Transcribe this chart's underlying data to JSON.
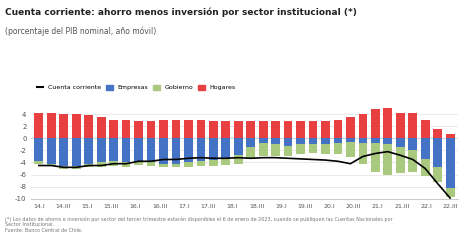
{
  "title": "Cuenta corriente: ahorro menos inversión por sector institucional (*)",
  "subtitle": "(porcentaje del PIB nominal, año móvil)",
  "legend_labels": [
    "Cuenta corriente",
    "Empresas",
    "Gobierno",
    "Hogares"
  ],
  "legend_colors": [
    "#000000",
    "#4472c4",
    "#a9c97e",
    "#e84040"
  ],
  "x_labels": [
    "14.I",
    "14.III",
    "15.I",
    "15.III",
    "16.I",
    "16.III",
    "17.I",
    "17.III",
    "18.I",
    "18.III",
    "19.I",
    "19.III",
    "20.I",
    "20.III",
    "21.I",
    "21.III",
    "22.I",
    "22.III"
  ],
  "empresas": [
    -3.8,
    -4.2,
    -4.5,
    -4.6,
    -4.2,
    -4.0,
    -3.8,
    -3.9,
    -3.8,
    -4.0,
    -4.2,
    -4.2,
    -4.0,
    -3.8,
    -3.6,
    -3.2,
    -2.8,
    -1.5,
    -0.8,
    -1.0,
    -1.2,
    -1.0,
    -0.9,
    -1.0,
    -0.8,
    -0.6,
    -0.7,
    -0.8,
    -1.0,
    -1.5,
    -2.0,
    -3.5,
    -4.8,
    -8.2
  ],
  "gobierno": [
    -0.5,
    -0.4,
    -0.5,
    -0.5,
    -0.6,
    -0.7,
    -0.8,
    -0.8,
    -0.6,
    -0.5,
    -0.5,
    -0.6,
    -0.7,
    -0.8,
    -1.0,
    -1.2,
    -1.5,
    -2.0,
    -2.2,
    -2.0,
    -1.8,
    -1.6,
    -1.5,
    -1.6,
    -1.8,
    -2.5,
    -3.5,
    -4.8,
    -5.0,
    -4.2,
    -3.5,
    -2.8,
    -2.5,
    -1.5
  ],
  "hogares": [
    4.2,
    4.2,
    4.1,
    4.0,
    3.8,
    3.5,
    3.0,
    3.0,
    2.8,
    2.8,
    3.0,
    3.0,
    3.0,
    3.0,
    2.8,
    2.8,
    2.8,
    2.8,
    2.8,
    2.8,
    2.8,
    2.8,
    2.8,
    2.8,
    3.0,
    3.5,
    4.0,
    4.8,
    5.2,
    4.2,
    4.2,
    3.0,
    1.5,
    0.8
  ],
  "cuenta_corriente": [
    -4.5,
    -4.5,
    -4.8,
    -4.8,
    -4.5,
    -4.5,
    -4.2,
    -4.2,
    -3.8,
    -3.8,
    -3.5,
    -3.5,
    -3.3,
    -3.2,
    -3.3,
    -3.3,
    -3.2,
    -3.3,
    -3.2,
    -3.2,
    -3.3,
    -3.4,
    -3.5,
    -3.6,
    -3.8,
    -4.2,
    -3.0,
    -2.5,
    -2.2,
    -2.8,
    -3.5,
    -5.0,
    -7.5,
    -9.9
  ],
  "bar_color_empresas": "#4472c4",
  "bar_color_gobierno": "#a9c97e",
  "bar_color_hogares": "#e84040",
  "line_color": "#000000",
  "background_color": "#ffffff",
  "ylim": [
    -10,
    5
  ],
  "yticks": [
    -10,
    -8,
    -6,
    -4,
    -2,
    0,
    2,
    4
  ],
  "footnote": "(*) Los datos de ahorro e inversión por sector del tercer trimestre estarán disponibles el 6 de enero de 2023, cuando se publiquen las Cuentas Nacionales por\nSector Institucional.\nFuente: Banco Central de Chile."
}
